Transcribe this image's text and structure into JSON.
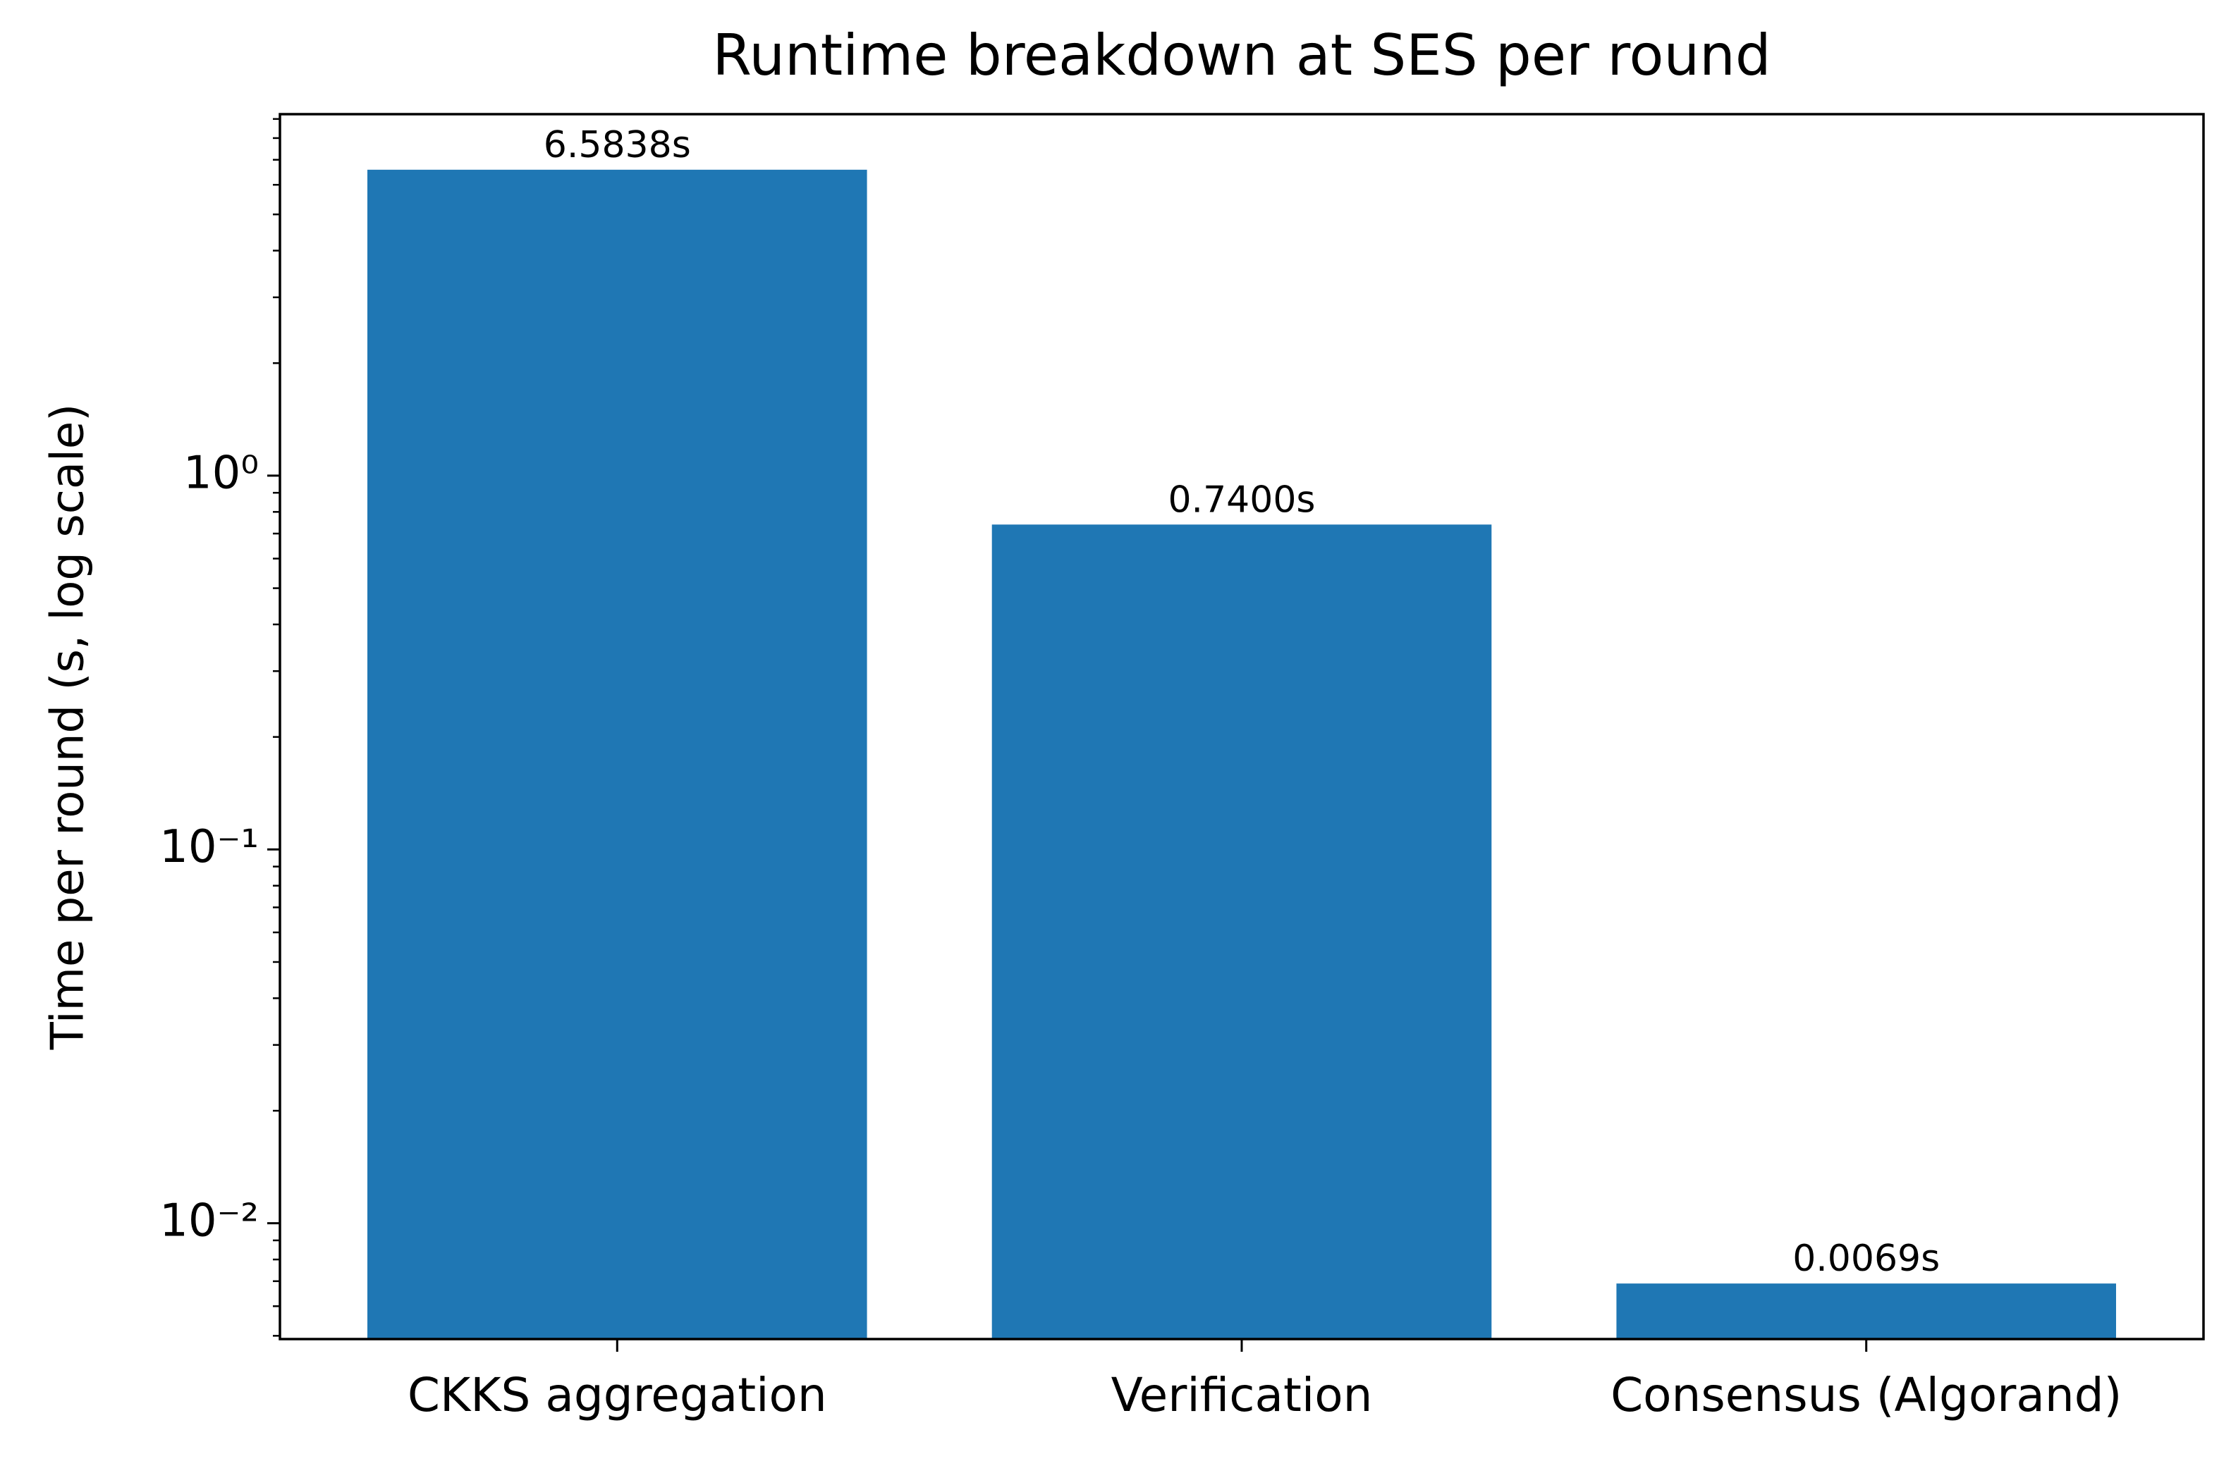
{
  "chart_data": {
    "type": "bar",
    "title": "Runtime breakdown at SES per round",
    "y_label": "Time per round (s, log scale)",
    "categories": [
      "CKKS aggregation",
      "Verification",
      "Consensus (Algorand)"
    ],
    "values": [
      6.5838,
      0.74,
      0.0069
    ],
    "value_labels": [
      "6.5838s",
      "0.7400s",
      "0.0069s"
    ],
    "color": "#1f77b4",
    "log_scale": true,
    "ylim": [
      0.0049,
      9.27
    ],
    "yticks": [
      {
        "value": 0.01,
        "label": "10⁻²"
      },
      {
        "value": 0.1,
        "label": "10⁻¹"
      },
      {
        "value": 1,
        "label": "10⁰"
      }
    ],
    "yminorticks": [
      0.005,
      0.006,
      0.007,
      0.008,
      0.009,
      0.02,
      0.03,
      0.04,
      0.05,
      0.06,
      0.07,
      0.08,
      0.09,
      0.2,
      0.3,
      0.4,
      0.5,
      0.6,
      0.7,
      0.8,
      0.9,
      2,
      3,
      4,
      5,
      6,
      7,
      8,
      9
    ],
    "grid": false
  }
}
